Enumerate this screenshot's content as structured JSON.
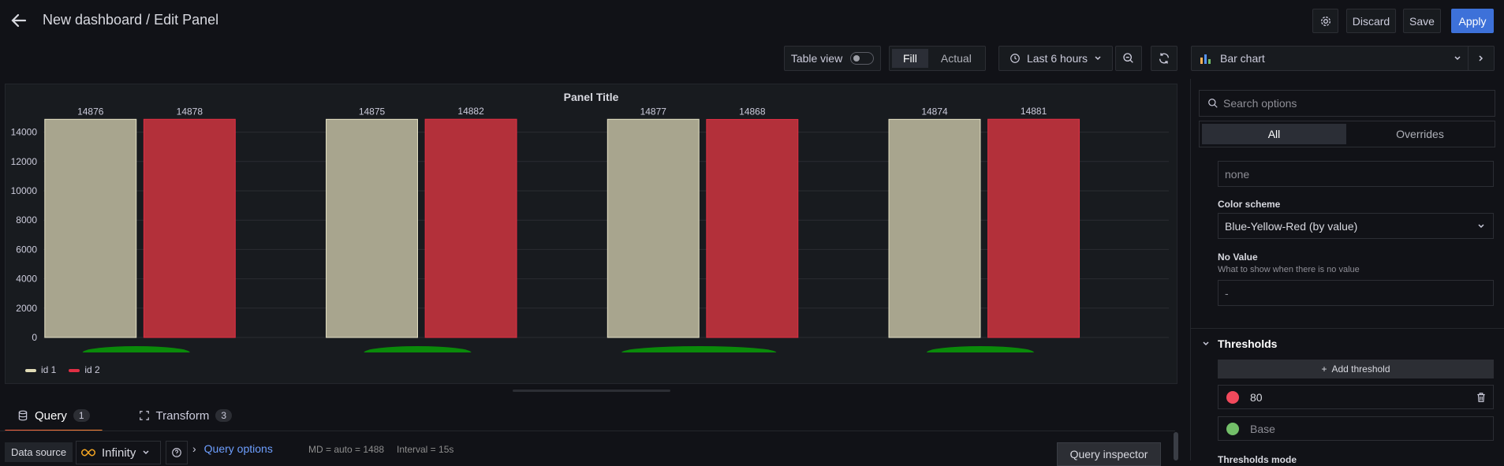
{
  "header": {
    "title": "New dashboard / Edit Panel",
    "discard": "Discard",
    "save": "Save",
    "apply": "Apply"
  },
  "toolbar": {
    "table_view": "Table view",
    "fill": "Fill",
    "actual": "Actual",
    "time_range": "Last 6 hours",
    "visualization": "Bar chart"
  },
  "chart_data": {
    "type": "bar",
    "title": "Panel Title",
    "categories": [
      "",
      "",
      "",
      ""
    ],
    "series": [
      {
        "name": "id 1",
        "color": "#a8a58e",
        "values": [
          14876,
          14875,
          14877,
          14874
        ]
      },
      {
        "name": "id 2",
        "color": "#b3303a",
        "values": [
          14878,
          14882,
          14868,
          14881
        ]
      }
    ],
    "yticks": [
      "0",
      "2000",
      "4000",
      "6000",
      "8000",
      "10000",
      "12000",
      "14000"
    ],
    "ylim": [
      0,
      15000
    ],
    "grid": true,
    "legend": "bottom-left"
  },
  "tabs": {
    "query": "Query",
    "query_count": "1",
    "transform": "Transform",
    "transform_count": "3"
  },
  "query_bar": {
    "data_source_label": "Data source",
    "data_source": "Infinity",
    "query_options": "Query options",
    "md": "MD = auto = 1488",
    "interval": "Interval = 15s",
    "inspector": "Query inspector"
  },
  "options": {
    "search_placeholder": "Search options",
    "all": "All",
    "overrides": "Overrides",
    "unit_value": "none",
    "color_scheme_label": "Color scheme",
    "color_scheme": "Blue-Yellow-Red (by value)",
    "no_value_label": "No Value",
    "no_value_desc": "What to show when there is no value",
    "no_value_placeholder": "-",
    "thresholds_title": "Thresholds",
    "add_threshold": "Add threshold",
    "threshold_red": "80",
    "threshold_base": "Base",
    "threshold_mode": "Thresholds mode",
    "red": "#f2495c",
    "green": "#73bf69"
  }
}
